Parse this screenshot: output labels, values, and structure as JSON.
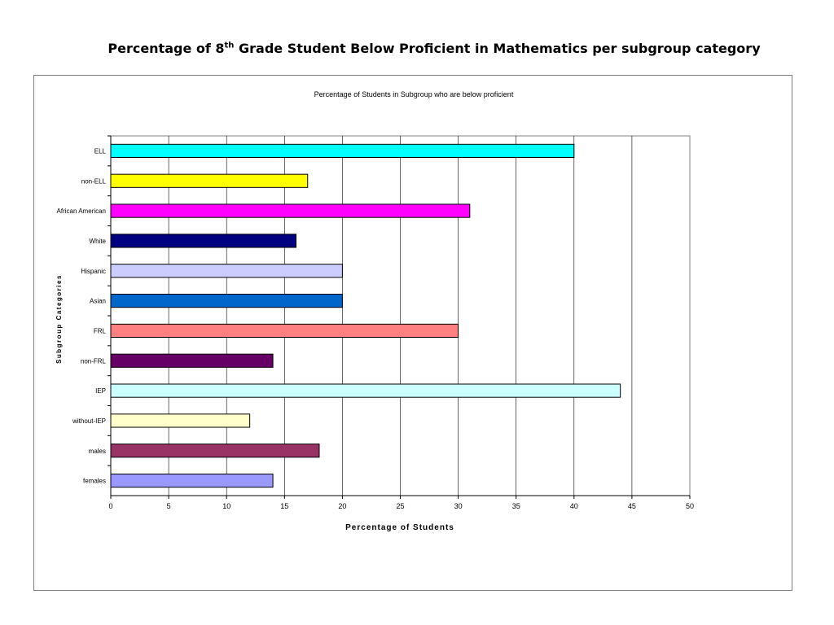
{
  "slide": {
    "title_pre": "Percentage of 8",
    "title_sup": "th",
    "title_post": " Grade Student Below Proficient in Mathematics per subgroup category"
  },
  "chart_data": {
    "type": "bar",
    "orientation": "horizontal",
    "title": "Percentage of Students in Subgroup who are below proficient",
    "xlabel": "Percentage of Students",
    "ylabel": "Subgroup Categories",
    "xlim": [
      0,
      50
    ],
    "xticks": [
      0,
      5,
      10,
      15,
      20,
      25,
      30,
      35,
      40,
      45,
      50
    ],
    "grid": "vertical",
    "legend": "none",
    "categories": [
      "ELL",
      "non-ELL",
      "African American",
      "White",
      "Hispanic",
      "Asian",
      "FRL",
      "non-FRL",
      "IEP",
      "without-IEP",
      "males",
      "females"
    ],
    "values": [
      40,
      17,
      31,
      16,
      20,
      20,
      30,
      14,
      44,
      12,
      18,
      14
    ],
    "colors": [
      "#00FFFF",
      "#FFFF00",
      "#FF00FF",
      "#000080",
      "#CCCCFF",
      "#0066CC",
      "#FF8080",
      "#660066",
      "#CCFFFF",
      "#FFFFCC",
      "#993366",
      "#9999FF"
    ]
  }
}
